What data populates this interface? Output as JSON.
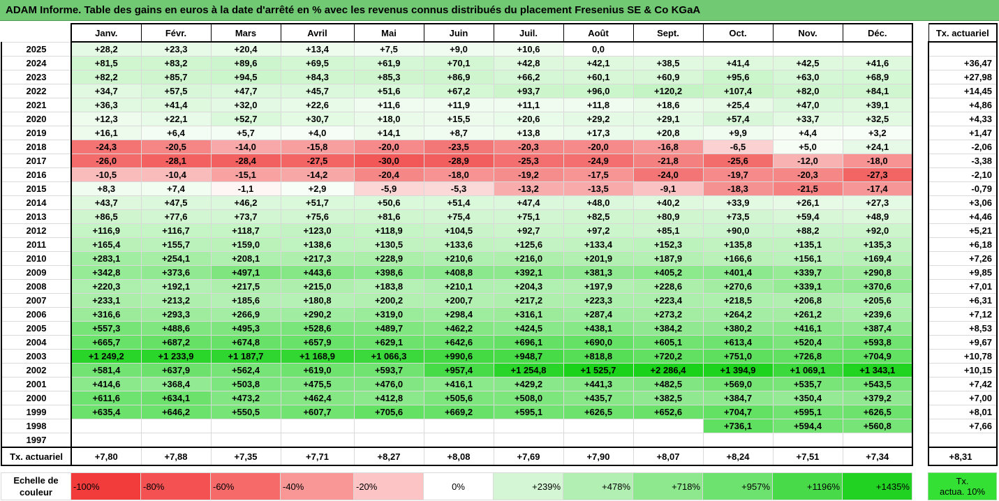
{
  "title": "ADAM Informe. Table des gains en euros à la date d'arrêté en % avec les revenus connus distribués du placement Fresenius SE & Co KGaA",
  "months": [
    "Janv.",
    "Févr.",
    "Mars",
    "Avril",
    "Mai",
    "Juin",
    "Juil.",
    "Août",
    "Sept.",
    "Oct.",
    "Nov.",
    "Déc."
  ],
  "side_header": "Tx. actuariel",
  "rows": [
    {
      "year": "2025",
      "values": [
        "+28,2",
        "+23,3",
        "+20,4",
        "+13,4",
        "+7,5",
        "+9,0",
        "+10,6",
        "0,0",
        "",
        "",
        "",
        ""
      ],
      "tx": ""
    },
    {
      "year": "2024",
      "values": [
        "+81,5",
        "+83,2",
        "+89,6",
        "+69,5",
        "+61,9",
        "+70,1",
        "+42,8",
        "+42,1",
        "+38,5",
        "+41,4",
        "+42,5",
        "+41,6"
      ],
      "tx": "+36,47"
    },
    {
      "year": "2023",
      "values": [
        "+82,2",
        "+85,7",
        "+94,5",
        "+84,3",
        "+85,3",
        "+86,9",
        "+66,2",
        "+60,1",
        "+60,9",
        "+95,6",
        "+63,0",
        "+68,9"
      ],
      "tx": "+27,98"
    },
    {
      "year": "2022",
      "values": [
        "+34,7",
        "+57,5",
        "+47,7",
        "+45,7",
        "+51,6",
        "+67,2",
        "+93,7",
        "+96,0",
        "+120,2",
        "+107,4",
        "+82,0",
        "+84,1"
      ],
      "tx": "+14,45"
    },
    {
      "year": "2021",
      "values": [
        "+36,3",
        "+41,4",
        "+32,0",
        "+22,6",
        "+11,6",
        "+11,9",
        "+11,1",
        "+11,8",
        "+18,6",
        "+25,4",
        "+47,0",
        "+39,1"
      ],
      "tx": "+4,86"
    },
    {
      "year": "2020",
      "values": [
        "+12,3",
        "+22,1",
        "+52,7",
        "+30,7",
        "+18,0",
        "+15,5",
        "+20,6",
        "+29,2",
        "+29,1",
        "+57,4",
        "+33,7",
        "+32,5"
      ],
      "tx": "+4,33"
    },
    {
      "year": "2019",
      "values": [
        "+16,1",
        "+6,4",
        "+5,7",
        "+4,0",
        "+14,1",
        "+8,7",
        "+13,8",
        "+17,3",
        "+20,8",
        "+9,9",
        "+4,4",
        "+3,2"
      ],
      "tx": "+1,47"
    },
    {
      "year": "2018",
      "values": [
        "-24,3",
        "-20,5",
        "-14,0",
        "-15,8",
        "-20,0",
        "-23,5",
        "-20,3",
        "-20,0",
        "-16,8",
        "-6,5",
        "+5,0",
        "+24,1"
      ],
      "tx": "-2,06"
    },
    {
      "year": "2017",
      "values": [
        "-26,0",
        "-28,1",
        "-28,4",
        "-27,5",
        "-30,0",
        "-28,9",
        "-25,3",
        "-24,9",
        "-21,8",
        "-25,6",
        "-12,0",
        "-18,0"
      ],
      "tx": "-3,38"
    },
    {
      "year": "2016",
      "values": [
        "-10,5",
        "-10,4",
        "-15,1",
        "-14,2",
        "-20,4",
        "-18,0",
        "-19,2",
        "-17,5",
        "-24,0",
        "-19,7",
        "-20,3",
        "-27,3"
      ],
      "tx": "-2,10"
    },
    {
      "year": "2015",
      "values": [
        "+8,3",
        "+7,4",
        "-1,1",
        "+2,9",
        "-5,9",
        "-5,3",
        "-13,2",
        "-13,5",
        "-9,1",
        "-18,3",
        "-21,5",
        "-17,4"
      ],
      "tx": "-0,79"
    },
    {
      "year": "2014",
      "values": [
        "+43,7",
        "+47,5",
        "+46,2",
        "+51,7",
        "+50,6",
        "+51,4",
        "+47,4",
        "+48,0",
        "+40,2",
        "+33,9",
        "+26,1",
        "+27,3"
      ],
      "tx": "+3,06"
    },
    {
      "year": "2013",
      "values": [
        "+86,5",
        "+77,6",
        "+73,7",
        "+75,6",
        "+81,6",
        "+75,4",
        "+75,1",
        "+82,5",
        "+80,9",
        "+73,5",
        "+59,4",
        "+48,9"
      ],
      "tx": "+4,46"
    },
    {
      "year": "2012",
      "values": [
        "+116,9",
        "+116,7",
        "+118,7",
        "+123,0",
        "+118,9",
        "+104,5",
        "+92,7",
        "+97,2",
        "+85,1",
        "+90,0",
        "+88,2",
        "+92,0"
      ],
      "tx": "+5,21"
    },
    {
      "year": "2011",
      "values": [
        "+165,4",
        "+155,7",
        "+159,0",
        "+138,6",
        "+130,5",
        "+133,6",
        "+125,6",
        "+133,4",
        "+152,3",
        "+135,8",
        "+135,1",
        "+135,3"
      ],
      "tx": "+6,18"
    },
    {
      "year": "2010",
      "values": [
        "+283,1",
        "+254,1",
        "+208,1",
        "+217,3",
        "+228,9",
        "+210,6",
        "+216,0",
        "+201,9",
        "+187,9",
        "+166,6",
        "+156,1",
        "+169,4"
      ],
      "tx": "+7,26"
    },
    {
      "year": "2009",
      "values": [
        "+342,8",
        "+373,6",
        "+497,1",
        "+443,6",
        "+398,6",
        "+408,8",
        "+392,1",
        "+381,3",
        "+405,2",
        "+401,4",
        "+339,7",
        "+290,8"
      ],
      "tx": "+9,85"
    },
    {
      "year": "2008",
      "values": [
        "+220,3",
        "+192,1",
        "+217,5",
        "+215,0",
        "+183,8",
        "+210,1",
        "+204,3",
        "+197,9",
        "+228,6",
        "+270,6",
        "+339,1",
        "+370,6"
      ],
      "tx": "+7,01"
    },
    {
      "year": "2007",
      "values": [
        "+233,1",
        "+213,2",
        "+185,6",
        "+180,8",
        "+200,2",
        "+200,7",
        "+217,2",
        "+223,3",
        "+223,4",
        "+218,5",
        "+206,8",
        "+205,6"
      ],
      "tx": "+6,31"
    },
    {
      "year": "2006",
      "values": [
        "+316,6",
        "+293,3",
        "+266,9",
        "+290,2",
        "+319,0",
        "+298,4",
        "+316,1",
        "+287,4",
        "+273,2",
        "+264,2",
        "+261,2",
        "+239,6"
      ],
      "tx": "+7,12"
    },
    {
      "year": "2005",
      "values": [
        "+557,3",
        "+488,6",
        "+495,3",
        "+528,6",
        "+489,7",
        "+462,2",
        "+424,5",
        "+438,1",
        "+384,2",
        "+380,2",
        "+416,1",
        "+387,4"
      ],
      "tx": "+8,53"
    },
    {
      "year": "2004",
      "values": [
        "+665,7",
        "+687,2",
        "+674,8",
        "+657,9",
        "+629,1",
        "+642,6",
        "+696,1",
        "+690,0",
        "+605,1",
        "+613,4",
        "+520,4",
        "+593,8"
      ],
      "tx": "+9,67"
    },
    {
      "year": "2003",
      "values": [
        "+1 249,2",
        "+1 233,9",
        "+1 187,7",
        "+1 168,9",
        "+1 066,3",
        "+990,6",
        "+948,7",
        "+818,8",
        "+720,2",
        "+751,0",
        "+726,8",
        "+704,9"
      ],
      "tx": "+10,78"
    },
    {
      "year": "2002",
      "values": [
        "+581,4",
        "+637,9",
        "+562,4",
        "+619,0",
        "+593,7",
        "+957,4",
        "+1 254,8",
        "+1 525,7",
        "+2 286,4",
        "+1 394,9",
        "+1 069,1",
        "+1 343,1"
      ],
      "tx": "+10,15"
    },
    {
      "year": "2001",
      "values": [
        "+414,6",
        "+368,4",
        "+503,8",
        "+475,5",
        "+476,0",
        "+416,1",
        "+429,2",
        "+441,3",
        "+482,5",
        "+569,0",
        "+535,7",
        "+543,5"
      ],
      "tx": "+7,42"
    },
    {
      "year": "2000",
      "values": [
        "+611,6",
        "+634,1",
        "+473,2",
        "+462,4",
        "+412,8",
        "+505,6",
        "+508,0",
        "+435,7",
        "+382,5",
        "+384,7",
        "+350,4",
        "+379,2"
      ],
      "tx": "+7,00"
    },
    {
      "year": "1999",
      "values": [
        "+635,4",
        "+646,2",
        "+550,5",
        "+607,7",
        "+705,6",
        "+669,2",
        "+595,1",
        "+626,5",
        "+652,6",
        "+704,7",
        "+595,1",
        "+626,5"
      ],
      "tx": "+8,01"
    },
    {
      "year": "1998",
      "values": [
        "",
        "",
        "",
        "",
        "",
        "",
        "",
        "",
        "",
        "+736,1",
        "+594,4",
        "+560,8"
      ],
      "tx": "+7,66"
    },
    {
      "year": "1997",
      "values": [
        "",
        "",
        "",
        "",
        "",
        "",
        "",
        "",
        "",
        "",
        "",
        ""
      ],
      "tx": ""
    }
  ],
  "footer": {
    "label": "Tx. actuariel",
    "values": [
      "+7,80",
      "+7,88",
      "+7,35",
      "+7,71",
      "+8,27",
      "+8,08",
      "+7,69",
      "+7,90",
      "+8,07",
      "+8,24",
      "+7,51",
      "+7,34"
    ],
    "tx": "+8,31"
  },
  "legend": {
    "label_line1": "Echelle de",
    "label_line2": "couleur",
    "items": [
      {
        "text": "-100%",
        "color": "#f23c3c",
        "align": "neg"
      },
      {
        "text": "-80%",
        "color": "#f45252",
        "align": "neg"
      },
      {
        "text": "-60%",
        "color": "#f66a6a",
        "align": "neg"
      },
      {
        "text": "-40%",
        "color": "#f99696",
        "align": "neg"
      },
      {
        "text": "-20%",
        "color": "#fcc4c4",
        "align": "neg"
      },
      {
        "text": "0%",
        "color": "#ffffff",
        "align": "zero"
      },
      {
        "text": "+239%",
        "color": "#d4f6d4",
        "align": "pos"
      },
      {
        "text": "+478%",
        "color": "#b2efb2",
        "align": "pos"
      },
      {
        "text": "+718%",
        "color": "#8ee98e",
        "align": "pos"
      },
      {
        "text": "+957%",
        "color": "#6ee26e",
        "align": "pos"
      },
      {
        "text": "+1196%",
        "color": "#48da48",
        "align": "pos"
      },
      {
        "text": "+1435%",
        "color": "#22d222",
        "align": "pos"
      }
    ],
    "side_line1": "Tx.",
    "side_line2": "actua. 10%"
  },
  "colors": {
    "title_bg": "#72c974",
    "neg_max": "#f23c3c",
    "pos_max": "#22d222"
  }
}
